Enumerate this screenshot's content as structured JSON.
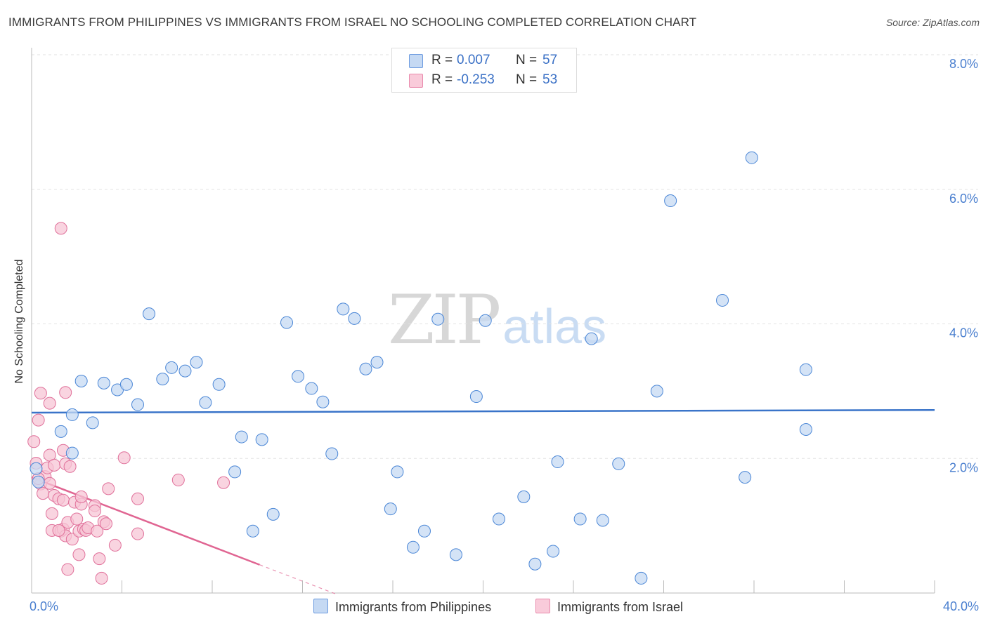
{
  "title": "IMMIGRANTS FROM PHILIPPINES VS IMMIGRANTS FROM ISRAEL NO SCHOOLING COMPLETED CORRELATION CHART",
  "source": "Source: ZipAtlas.com",
  "watermark": {
    "zip": "ZIP",
    "atlas": "atlas"
  },
  "stats": {
    "r_label": "R =",
    "n_label": "N =",
    "philippines": {
      "r": "0.007",
      "n": "57",
      "color": "#a9c6ee"
    },
    "israel": {
      "r": "-0.253",
      "n": "53",
      "color": "#f5b5c8"
    }
  },
  "legend": {
    "philippines": "Immigrants from Philippines",
    "israel": "Immigrants from Israel"
  },
  "chart_data": {
    "type": "scatter",
    "title": "IMMIGRANTS FROM PHILIPPINES VS IMMIGRANTS FROM ISRAEL NO SCHOOLING COMPLETED CORRELATION CHART",
    "xlabel": "",
    "ylabel": "No Schooling Completed",
    "xlim": [
      0,
      40
    ],
    "ylim": [
      0,
      8
    ],
    "x_tick_labels": [
      "0.0%",
      "40.0%"
    ],
    "y_ticks": [
      2,
      4,
      6,
      8
    ],
    "y_tick_labels": [
      "2.0%",
      "4.0%",
      "6.0%",
      "8.0%"
    ],
    "grid": true,
    "series": [
      {
        "name": "Immigrants from Philippines",
        "color": "#4a86d6",
        "fill": "#c5d9f3",
        "trend": {
          "x": [
            0,
            40
          ],
          "y": [
            2.68,
            2.72
          ],
          "color": "#3a74c9"
        },
        "points": [
          [
            1.8,
            2.08
          ],
          [
            1.3,
            2.4
          ],
          [
            1.8,
            2.65
          ],
          [
            2.2,
            3.15
          ],
          [
            2.7,
            2.53
          ],
          [
            3.2,
            3.12
          ],
          [
            3.8,
            3.02
          ],
          [
            4.2,
            3.1
          ],
          [
            4.7,
            2.8
          ],
          [
            5.2,
            4.15
          ],
          [
            5.8,
            3.18
          ],
          [
            6.2,
            3.35
          ],
          [
            6.8,
            3.3
          ],
          [
            7.3,
            3.43
          ],
          [
            7.7,
            2.83
          ],
          [
            8.3,
            3.1
          ],
          [
            9.0,
            1.8
          ],
          [
            9.3,
            2.32
          ],
          [
            9.8,
            0.92
          ],
          [
            10.2,
            2.28
          ],
          [
            10.7,
            1.17
          ],
          [
            11.3,
            4.02
          ],
          [
            11.8,
            3.22
          ],
          [
            12.4,
            3.04
          ],
          [
            12.9,
            2.84
          ],
          [
            13.3,
            2.07
          ],
          [
            13.8,
            4.22
          ],
          [
            14.3,
            4.08
          ],
          [
            14.8,
            3.33
          ],
          [
            15.3,
            3.43
          ],
          [
            15.9,
            1.25
          ],
          [
            16.2,
            1.8
          ],
          [
            16.9,
            0.68
          ],
          [
            17.4,
            0.92
          ],
          [
            18.0,
            4.07
          ],
          [
            18.8,
            0.57
          ],
          [
            19.7,
            2.92
          ],
          [
            20.1,
            4.05
          ],
          [
            20.7,
            1.1
          ],
          [
            21.8,
            1.43
          ],
          [
            22.3,
            0.43
          ],
          [
            23.1,
            0.62
          ],
          [
            23.3,
            1.95
          ],
          [
            24.3,
            1.1
          ],
          [
            24.8,
            3.78
          ],
          [
            25.3,
            1.08
          ],
          [
            26.0,
            1.92
          ],
          [
            27.0,
            0.22
          ],
          [
            27.7,
            3.0
          ],
          [
            28.3,
            5.83
          ],
          [
            30.6,
            4.35
          ],
          [
            31.6,
            1.72
          ],
          [
            31.9,
            6.47
          ],
          [
            34.3,
            3.32
          ],
          [
            34.3,
            2.43
          ],
          [
            0.2,
            1.85
          ],
          [
            0.3,
            1.65
          ]
        ]
      },
      {
        "name": "Immigrants from Israel",
        "color": "#e0709a",
        "fill": "#f7c6d6",
        "trend": {
          "x": [
            0,
            10.1
          ],
          "y": [
            1.72,
            0.42
          ],
          "color": "#e06592",
          "dash_to_x": 13.5
        },
        "points": [
          [
            0.1,
            2.25
          ],
          [
            0.3,
            2.57
          ],
          [
            0.4,
            2.97
          ],
          [
            0.4,
            1.62
          ],
          [
            0.5,
            1.48
          ],
          [
            0.6,
            1.73
          ],
          [
            0.7,
            1.86
          ],
          [
            0.8,
            1.63
          ],
          [
            0.8,
            2.05
          ],
          [
            0.9,
            1.18
          ],
          [
            0.9,
            0.93
          ],
          [
            1.0,
            1.45
          ],
          [
            1.0,
            1.9
          ],
          [
            1.2,
            1.4
          ],
          [
            1.3,
            0.92
          ],
          [
            1.3,
            5.42
          ],
          [
            1.4,
            1.38
          ],
          [
            1.4,
            0.95
          ],
          [
            1.5,
            0.85
          ],
          [
            1.5,
            2.98
          ],
          [
            1.4,
            2.12
          ],
          [
            1.5,
            1.92
          ],
          [
            1.6,
            1.05
          ],
          [
            1.6,
            0.35
          ],
          [
            1.7,
            1.88
          ],
          [
            1.8,
            0.8
          ],
          [
            1.9,
            1.35
          ],
          [
            2.0,
            1.1
          ],
          [
            2.1,
            0.92
          ],
          [
            2.2,
            1.32
          ],
          [
            2.1,
            0.57
          ],
          [
            2.2,
            1.43
          ],
          [
            2.3,
            0.95
          ],
          [
            2.4,
            0.93
          ],
          [
            2.5,
            0.97
          ],
          [
            2.8,
            1.3
          ],
          [
            2.8,
            1.22
          ],
          [
            2.9,
            0.92
          ],
          [
            3.0,
            0.51
          ],
          [
            3.2,
            1.06
          ],
          [
            3.3,
            1.03
          ],
          [
            3.1,
            0.22
          ],
          [
            3.4,
            1.55
          ],
          [
            3.7,
            0.71
          ],
          [
            4.1,
            2.01
          ],
          [
            4.7,
            1.4
          ],
          [
            4.7,
            0.88
          ],
          [
            6.5,
            1.68
          ],
          [
            8.5,
            1.64
          ],
          [
            0.8,
            2.82
          ],
          [
            0.2,
            1.93
          ],
          [
            0.3,
            1.7
          ],
          [
            1.2,
            0.93
          ]
        ]
      }
    ]
  }
}
